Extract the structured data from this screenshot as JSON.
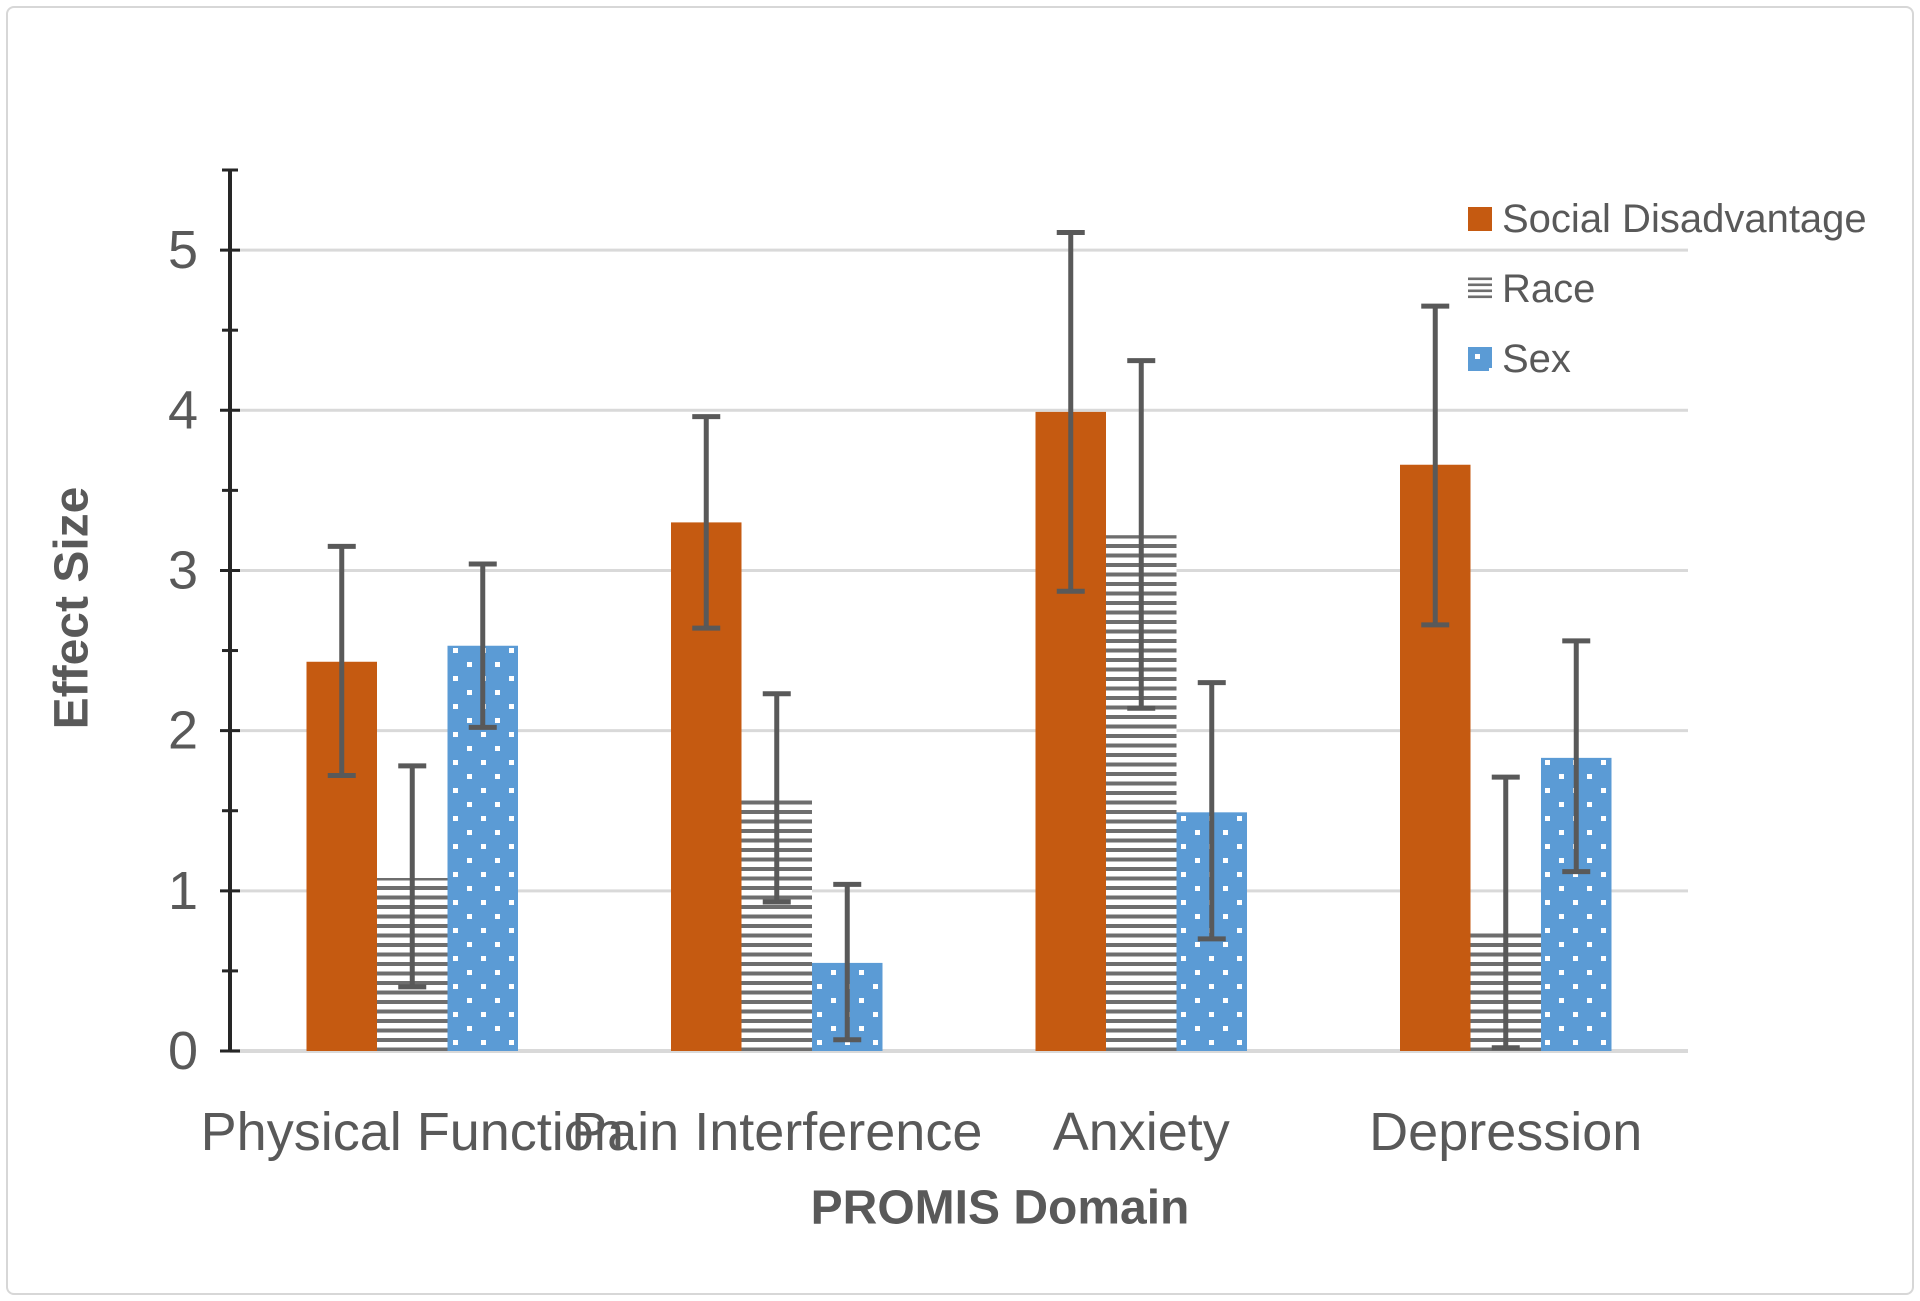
{
  "figure": {
    "background": "#FFFFFF",
    "border_color": "#D7D7D7"
  },
  "chart_data": {
    "type": "bar",
    "title": "",
    "xlabel": "PROMIS Domain",
    "ylabel": "Effect Size",
    "categories": [
      "Physical Function",
      "Pain Interference",
      "Anxiety",
      "Depression"
    ],
    "series": [
      {
        "name": "Social Disadvantage",
        "style": "solid",
        "color": "#C55A11",
        "values": [
          2.43,
          3.3,
          3.99,
          3.66
        ],
        "error_low": [
          1.72,
          2.64,
          2.87,
          2.66
        ],
        "error_high": [
          3.15,
          3.96,
          5.11,
          4.65
        ]
      },
      {
        "name": "Race",
        "style": "horizontal-stripes",
        "color": "#6E6E6E",
        "values": [
          1.08,
          1.58,
          3.22,
          0.74
        ],
        "error_low": [
          0.4,
          0.93,
          2.14,
          0.02
        ],
        "error_high": [
          1.78,
          2.23,
          4.31,
          1.71
        ]
      },
      {
        "name": "Sex",
        "style": "blue-dots",
        "color": "#5B9BD5",
        "values": [
          2.53,
          0.55,
          1.49,
          1.83
        ],
        "error_low": [
          2.02,
          0.07,
          0.7,
          1.12
        ],
        "error_high": [
          3.04,
          1.04,
          2.3,
          2.56
        ]
      }
    ],
    "ylim": [
      0,
      5.5
    ],
    "yticks": [
      0,
      1,
      2,
      3,
      4,
      5
    ],
    "minor_tick_step": 0.5,
    "grid": true,
    "error_bars": true,
    "legend_position": "top-right",
    "gridline_color": "#D9D9D9",
    "axis_color": "#262626",
    "error_bar_color": "#595959",
    "text_color": "#595959"
  }
}
